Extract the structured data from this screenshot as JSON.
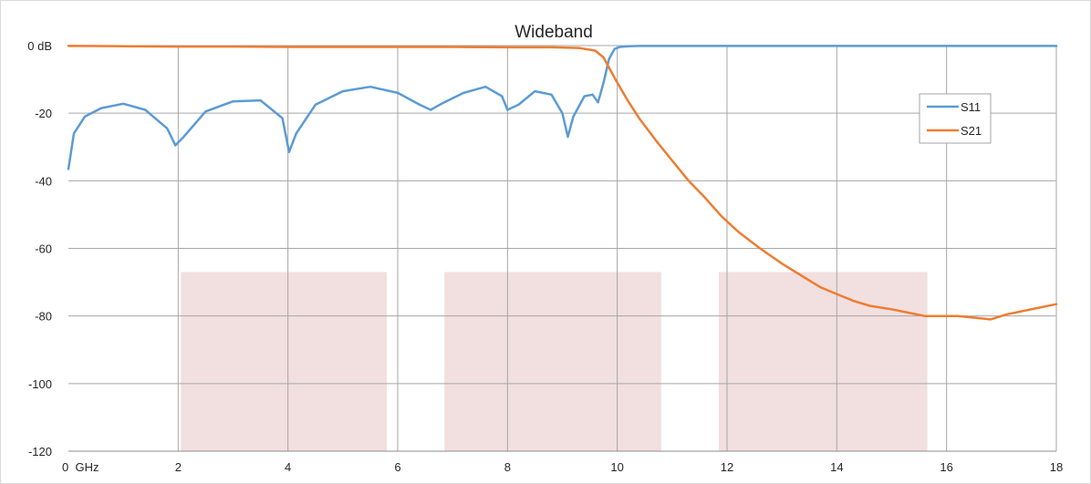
{
  "chart_data": {
    "type": "line",
    "title": "Wideband",
    "xlabel": "",
    "ylabel": "",
    "xlim": [
      0,
      18
    ],
    "ylim": [
      -120,
      0
    ],
    "x_ticks": [
      {
        "value": 0,
        "label": "0  GHz"
      },
      {
        "value": 2,
        "label": "2"
      },
      {
        "value": 4,
        "label": "4"
      },
      {
        "value": 6,
        "label": "6"
      },
      {
        "value": 8,
        "label": "8"
      },
      {
        "value": 10,
        "label": "10"
      },
      {
        "value": 12,
        "label": "12"
      },
      {
        "value": 14,
        "label": "14"
      },
      {
        "value": 16,
        "label": "16"
      },
      {
        "value": 18,
        "label": "18"
      }
    ],
    "y_ticks": [
      {
        "value": 0,
        "label": "0 dB"
      },
      {
        "value": -20,
        "label": "-20"
      },
      {
        "value": -40,
        "label": "-40"
      },
      {
        "value": -60,
        "label": "-60"
      },
      {
        "value": -80,
        "label": "-80"
      },
      {
        "value": -100,
        "label": "-100"
      },
      {
        "value": -120,
        "label": "-120"
      }
    ],
    "grid": true,
    "legend_position": "top-right",
    "shaded_bands": [
      {
        "x_start": 2.05,
        "x_end": 5.8,
        "y_top": -67,
        "y_bottom": -120,
        "color": "#f2dfe0"
      },
      {
        "x_start": 6.85,
        "x_end": 10.8,
        "y_top": -67,
        "y_bottom": -120,
        "color": "#f2dfe0"
      },
      {
        "x_start": 11.85,
        "x_end": 15.65,
        "y_top": -67,
        "y_bottom": -120,
        "color": "#f2dfe0"
      }
    ],
    "series": [
      {
        "name": "S11",
        "color": "#5b9bd5",
        "x": [
          0.0,
          0.1,
          0.3,
          0.6,
          1.0,
          1.4,
          1.8,
          1.95,
          2.1,
          2.5,
          3.0,
          3.5,
          3.9,
          4.02,
          4.15,
          4.5,
          5.0,
          5.5,
          6.0,
          6.4,
          6.6,
          6.8,
          7.2,
          7.6,
          7.9,
          8.0,
          8.2,
          8.5,
          8.8,
          9.0,
          9.1,
          9.2,
          9.4,
          9.55,
          9.65,
          9.75,
          9.85,
          9.95,
          10.05,
          10.2,
          10.4,
          11.0,
          12.0,
          14.0,
          16.0,
          18.0
        ],
        "values": [
          -36.5,
          -26,
          -21,
          -18.5,
          -17.2,
          -19,
          -24.5,
          -29.5,
          -27,
          -19.5,
          -16.5,
          -16.2,
          -21.5,
          -31.5,
          -26,
          -17.5,
          -13.5,
          -12.2,
          -14,
          -17.5,
          -19,
          -17.2,
          -14,
          -12.2,
          -15,
          -19,
          -17.5,
          -13.5,
          -14.5,
          -20,
          -27,
          -21,
          -15,
          -14.5,
          -16.8,
          -11,
          -4,
          -1,
          -0.4,
          -0.2,
          -0.1,
          -0.1,
          -0.1,
          -0.1,
          -0.1,
          -0.1
        ]
      },
      {
        "name": "S21",
        "color": "#ed7d31",
        "x": [
          0.0,
          1.0,
          2.0,
          3.0,
          4.0,
          5.0,
          6.0,
          7.0,
          8.0,
          8.8,
          9.3,
          9.6,
          9.75,
          9.85,
          10.0,
          10.2,
          10.4,
          10.7,
          11.0,
          11.3,
          11.6,
          11.9,
          12.2,
          12.6,
          13.0,
          13.4,
          13.7,
          14.0,
          14.3,
          14.6,
          15.0,
          15.3,
          15.6,
          15.9,
          16.2,
          16.5,
          16.8,
          17.1,
          17.4,
          17.7,
          18.0
        ],
        "values": [
          -0.1,
          -0.2,
          -0.3,
          -0.3,
          -0.4,
          -0.4,
          -0.4,
          -0.4,
          -0.5,
          -0.5,
          -0.7,
          -1.5,
          -3.5,
          -6.5,
          -11,
          -16.5,
          -21.5,
          -28,
          -34,
          -40,
          -45,
          -50.5,
          -55,
          -60,
          -64.5,
          -68.5,
          -71.5,
          -73.5,
          -75.5,
          -77,
          -78,
          -79,
          -80,
          -80,
          -80,
          -80.5,
          -81,
          -79.5,
          -78.5,
          -77.5,
          -76.5
        ]
      }
    ]
  }
}
